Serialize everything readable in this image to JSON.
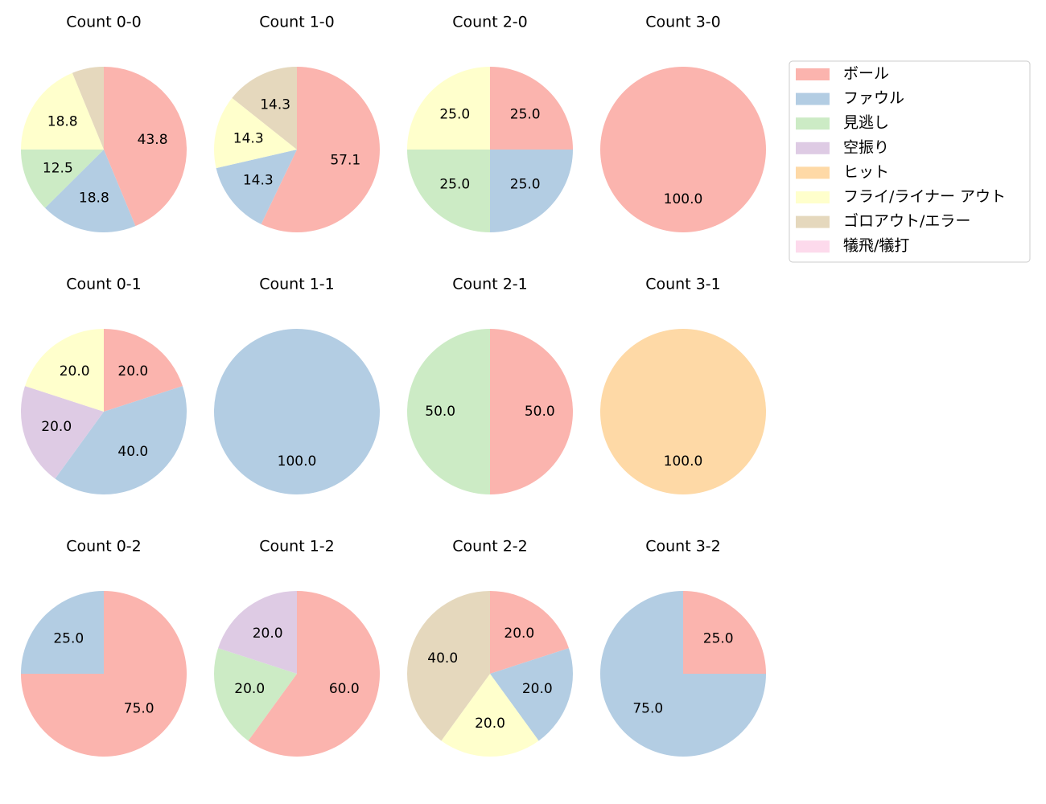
{
  "legend": {
    "labels": [
      "ボール",
      "ファウル",
      "見逃し",
      "空振り",
      "ヒット",
      "フライ/ライナー アウト",
      "ゴロアウト/エラー",
      "犠飛/犠打"
    ],
    "colors": [
      "#fbb4ae",
      "#b3cde3",
      "#ccebc5",
      "#decbe4",
      "#fed9a6",
      "#ffffcc",
      "#e5d8bd",
      "#fddaec"
    ]
  },
  "chart_data": [
    {
      "type": "pie",
      "title": "Count 0-0",
      "values": [
        43.8,
        18.8,
        12.5,
        null,
        null,
        18.8,
        6.2,
        null
      ],
      "value_labels": [
        "43.8",
        "18.8",
        "12.5",
        null,
        null,
        "18.8",
        null,
        null
      ]
    },
    {
      "type": "pie",
      "title": "Count 1-0",
      "values": [
        57.1,
        14.3,
        null,
        null,
        null,
        14.3,
        14.3,
        null
      ],
      "value_labels": [
        "57.1",
        "14.3",
        null,
        null,
        null,
        "14.3",
        "14.3",
        null
      ]
    },
    {
      "type": "pie",
      "title": "Count 2-0",
      "values": [
        25,
        25,
        25,
        null,
        null,
        25,
        null,
        null
      ],
      "value_labels": [
        "25.0",
        "25.0",
        "25.0",
        null,
        null,
        "25.0",
        null,
        null
      ]
    },
    {
      "type": "pie",
      "title": "Count 3-0",
      "values": [
        100,
        null,
        null,
        null,
        null,
        null,
        null,
        null
      ],
      "value_labels": [
        "100.0",
        null,
        null,
        null,
        null,
        null,
        null,
        null
      ]
    },
    {
      "type": "pie",
      "title": "Count 0-1",
      "values": [
        20,
        40,
        null,
        20,
        null,
        20,
        null,
        null
      ],
      "value_labels": [
        "20.0",
        "40.0",
        null,
        "20.0",
        null,
        "20.0",
        null,
        null
      ]
    },
    {
      "type": "pie",
      "title": "Count 1-1",
      "values": [
        null,
        100,
        null,
        null,
        null,
        null,
        null,
        null
      ],
      "value_labels": [
        null,
        "100.0",
        null,
        null,
        null,
        null,
        null,
        null
      ]
    },
    {
      "type": "pie",
      "title": "Count 2-1",
      "values": [
        50,
        null,
        50,
        null,
        null,
        null,
        null,
        null
      ],
      "value_labels": [
        "50.0",
        null,
        "50.0",
        null,
        null,
        null,
        null,
        null
      ]
    },
    {
      "type": "pie",
      "title": "Count 3-1",
      "values": [
        null,
        null,
        null,
        null,
        100,
        null,
        null,
        null
      ],
      "value_labels": [
        null,
        null,
        null,
        null,
        "100.0",
        null,
        null,
        null
      ]
    },
    {
      "type": "pie",
      "title": "Count 0-2",
      "values": [
        75,
        25,
        null,
        null,
        null,
        null,
        null,
        null
      ],
      "value_labels": [
        "75.0",
        "25.0",
        null,
        null,
        null,
        null,
        null,
        null
      ]
    },
    {
      "type": "pie",
      "title": "Count 1-2",
      "values": [
        60,
        null,
        20,
        20,
        null,
        null,
        null,
        null
      ],
      "value_labels": [
        "60.0",
        null,
        "20.0",
        "20.0",
        null,
        null,
        null,
        null
      ]
    },
    {
      "type": "pie",
      "title": "Count 2-2",
      "values": [
        20,
        20,
        null,
        null,
        null,
        20,
        40,
        null
      ],
      "value_labels": [
        "20.0",
        "20.0",
        null,
        null,
        null,
        "20.0",
        "40.0",
        null
      ]
    },
    {
      "type": "pie",
      "title": "Count 3-2",
      "values": [
        25,
        75,
        null,
        null,
        null,
        null,
        null,
        null
      ],
      "value_labels": [
        "25.0",
        "75.0",
        null,
        null,
        null,
        null,
        null,
        null
      ]
    }
  ]
}
